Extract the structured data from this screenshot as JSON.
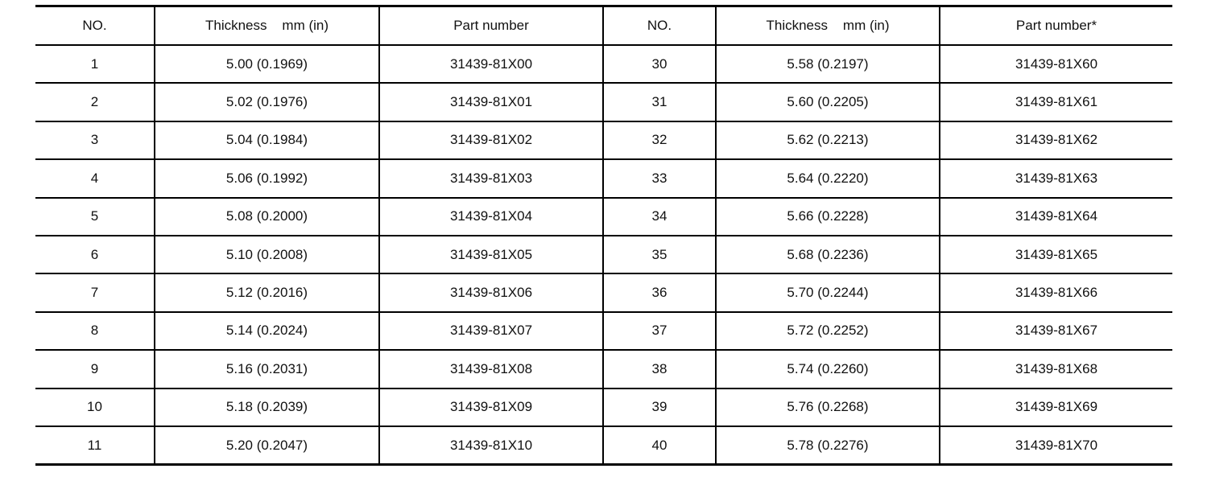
{
  "headers": [
    "NO.",
    "Thickness    mm (in)",
    "Part number",
    "NO.",
    "Thickness    mm (in)",
    "Part number*"
  ],
  "rows": [
    [
      "1",
      "5.00 (0.1969)",
      "31439-81X00",
      "30",
      "5.58 (0.2197)",
      "31439-81X60"
    ],
    [
      "2",
      "5.02 (0.1976)",
      "31439-81X01",
      "31",
      "5.60 (0.2205)",
      "31439-81X61"
    ],
    [
      "3",
      "5.04 (0.1984)",
      "31439-81X02",
      "32",
      "5.62 (0.2213)",
      "31439-81X62"
    ],
    [
      "4",
      "5.06 (0.1992)",
      "31439-81X03",
      "33",
      "5.64 (0.2220)",
      "31439-81X63"
    ],
    [
      "5",
      "5.08 (0.2000)",
      "31439-81X04",
      "34",
      "5.66 (0.2228)",
      "31439-81X64"
    ],
    [
      "6",
      "5.10 (0.2008)",
      "31439-81X05",
      "35",
      "5.68 (0.2236)",
      "31439-81X65"
    ],
    [
      "7",
      "5.12 (0.2016)",
      "31439-81X06",
      "36",
      "5.70 (0.2244)",
      "31439-81X66"
    ],
    [
      "8",
      "5.14 (0.2024)",
      "31439-81X07",
      "37",
      "5.72 (0.2252)",
      "31439-81X67"
    ],
    [
      "9",
      "5.16 (0.2031)",
      "31439-81X08",
      "38",
      "5.74 (0.2260)",
      "31439-81X68"
    ],
    [
      "10",
      "5.18 (0.2039)",
      "31439-81X09",
      "39",
      "5.76 (0.2268)",
      "31439-81X69"
    ],
    [
      "11",
      "5.20 (0.2047)",
      "31439-81X10",
      "40",
      "5.78 (0.2276)",
      "31439-81X70"
    ]
  ]
}
